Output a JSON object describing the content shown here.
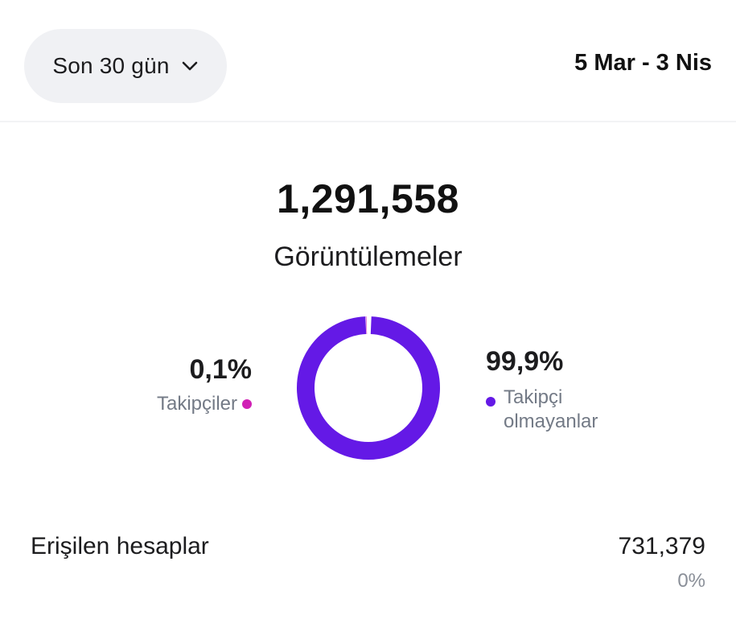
{
  "header": {
    "range_label": "Son 30 gün",
    "date_range": "5 Mar - 3 Nis"
  },
  "summary": {
    "total_views": "1,291,558",
    "views_label": "Görüntülemeler"
  },
  "breakdown": {
    "followers": {
      "percent_label": "0,1%",
      "label": "Takipçiler",
      "color": "#d020b5",
      "share": 0.001
    },
    "non_followers": {
      "percent_label": "99,9%",
      "label": "Takipçi olmayanlar",
      "color": "#6419e6",
      "share": 0.999
    }
  },
  "reach": {
    "label": "Erişilen hesaplar",
    "value": "731,379",
    "change": "0%"
  },
  "icons": {
    "range_dropdown": "chevron-down-icon"
  }
}
